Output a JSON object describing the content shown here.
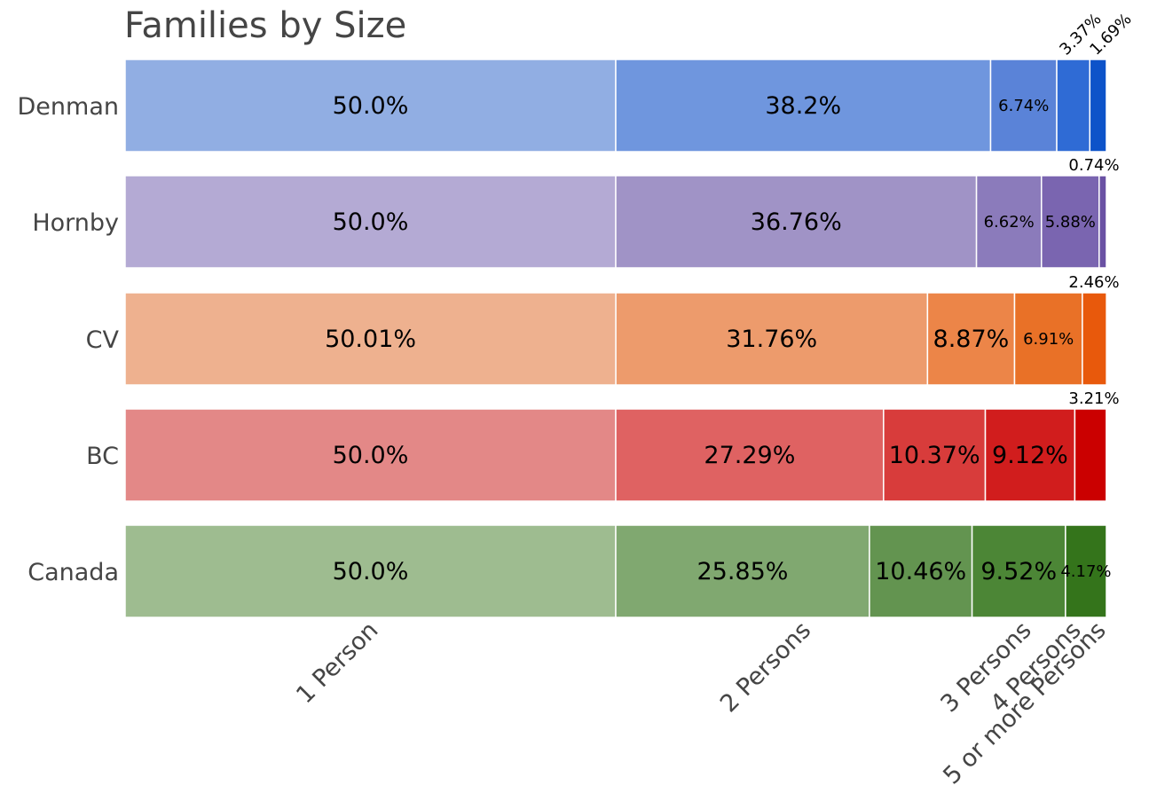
{
  "chart_data": {
    "type": "bar",
    "orientation": "horizontal",
    "stacked": true,
    "title": "Families by Size",
    "xlabel": "",
    "ylabel": "",
    "grid": false,
    "legend": "none",
    "categories": [
      "Denman",
      "Hornby",
      "CV",
      "BC",
      "Canada"
    ],
    "x_ticks": [
      "1 Person",
      "2 Persons",
      "3 Persons",
      "4 Persons",
      "5 or more Persons"
    ],
    "series": [
      {
        "name": "1 Person",
        "values": [
          50.0,
          50.0,
          50.01,
          50.0,
          50.0
        ],
        "labels": [
          "50.0%",
          "50.0%",
          "50.01%",
          "50.0%",
          "50.0%"
        ]
      },
      {
        "name": "2 Persons",
        "values": [
          38.2,
          36.76,
          31.76,
          27.29,
          25.85
        ],
        "labels": [
          "38.2%",
          "36.76%",
          "31.76%",
          "27.29%",
          "25.85%"
        ]
      },
      {
        "name": "3 Persons",
        "values": [
          6.74,
          6.62,
          8.87,
          10.37,
          10.46
        ],
        "labels": [
          "6.74%",
          "6.62%",
          "8.87%",
          "10.37%",
          "10.46%"
        ]
      },
      {
        "name": "4 Persons",
        "values": [
          3.37,
          5.88,
          6.91,
          9.12,
          9.52
        ],
        "labels": [
          "3.37%",
          "5.88%",
          "6.91%",
          "9.12%",
          "9.52%"
        ]
      },
      {
        "name": "5 or more Persons",
        "values": [
          1.69,
          0.74,
          2.46,
          3.21,
          4.17
        ],
        "labels": [
          "1.69%",
          "0.74%",
          "2.46%",
          "3.21%",
          "4.17%"
        ]
      }
    ],
    "colors": [
      [
        "#91aee3",
        "#6f96de",
        "#5a83d8",
        "#2f6bd5",
        "#0d53c9"
      ],
      [
        "#b4aad4",
        "#a093c6",
        "#8b7bbb",
        "#7a65b0",
        "#6a51a3"
      ],
      [
        "#eeb18f",
        "#ed9b6c",
        "#ec8548",
        "#e97127",
        "#e8590c"
      ],
      [
        "#e38887",
        "#df6262",
        "#d83c3b",
        "#d11d1d",
        "#cb0000"
      ],
      [
        "#9ebc90",
        "#80a870",
        "#639450",
        "#4c8636",
        "#34741b"
      ]
    ]
  }
}
